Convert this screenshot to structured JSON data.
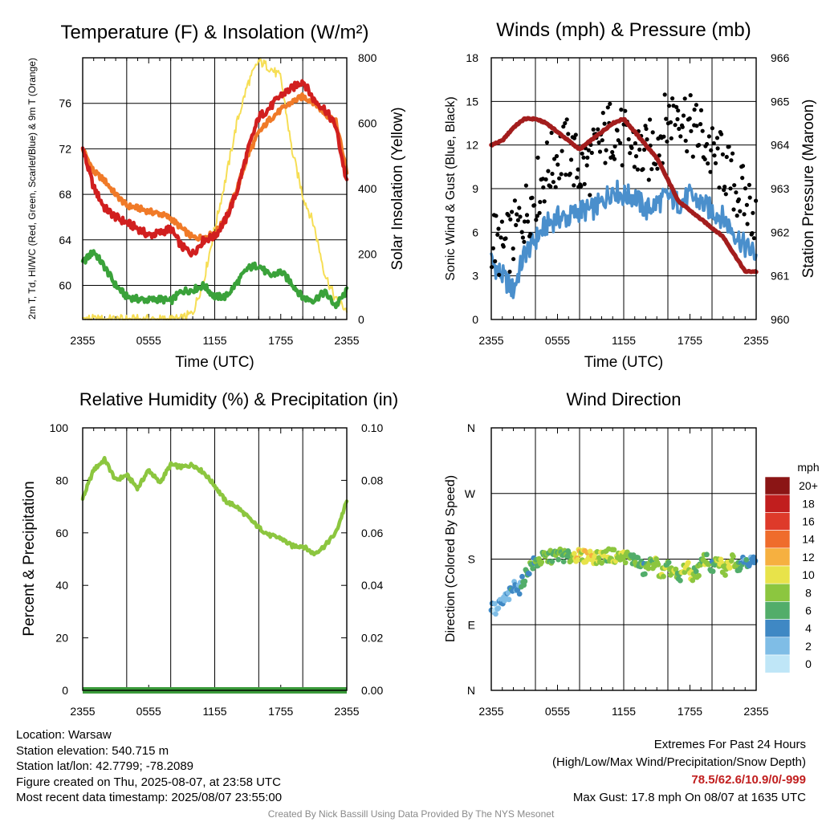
{
  "chart_data": [
    {
      "type": "line",
      "title": "Temperature (F) & Insolation (W/m²)",
      "xlabel": "Time (UTC)",
      "ylabel": "2m T, Td, HI/WC (Red, Green, Scarlet/Blue) & 9m T (Orange)",
      "y2label": "Solar Insolation (Yellow)",
      "x_ticks": [
        "2355",
        "0555",
        "1155",
        "1755",
        "2355"
      ],
      "ylim": [
        57,
        80
      ],
      "y_ticks": [
        60,
        64,
        68,
        72,
        76
      ],
      "y2lim": [
        0,
        800
      ],
      "y2_ticks": [
        0,
        200,
        400,
        600,
        800
      ],
      "series": [
        {
          "name": "2m T",
          "color": "#d11f1f",
          "x": [
            0,
            1,
            2,
            3,
            4,
            5,
            6,
            7,
            8,
            9,
            10,
            11,
            12,
            13,
            14,
            15,
            16,
            17,
            18,
            19,
            20,
            21,
            22,
            23,
            24
          ],
          "values": [
            72.0,
            68.6,
            66.8,
            66.0,
            65.5,
            65.0,
            64.4,
            64.6,
            65.0,
            63.4,
            62.8,
            64.0,
            64.3,
            65.8,
            68.2,
            71.8,
            74.8,
            75.6,
            76.7,
            77.3,
            78.0,
            76.3,
            75.5,
            74.0,
            69.0
          ]
        },
        {
          "name": "9m T",
          "color": "#f07a28",
          "x": [
            0,
            1,
            2,
            3,
            4,
            5,
            6,
            7,
            8,
            9,
            10,
            11,
            12,
            13,
            14,
            15,
            16,
            17,
            18,
            19,
            20,
            21,
            22,
            23,
            24
          ],
          "values": [
            72.0,
            70.0,
            69.2,
            68.0,
            67.0,
            66.8,
            66.5,
            66.3,
            65.9,
            65.0,
            64.2,
            64.2,
            64.6,
            65.8,
            68.4,
            71.4,
            73.4,
            74.6,
            75.4,
            76.1,
            76.6,
            76.1,
            75.1,
            74.4,
            70.0
          ]
        },
        {
          "name": "2m Td",
          "color": "#3aa23a",
          "x": [
            0,
            1,
            2,
            3,
            4,
            5,
            6,
            7,
            8,
            9,
            10,
            11,
            12,
            13,
            14,
            15,
            16,
            17,
            18,
            19,
            20,
            21,
            22,
            23,
            24
          ],
          "values": [
            62.0,
            63.0,
            61.6,
            60.0,
            59.0,
            58.8,
            58.7,
            58.8,
            58.6,
            59.5,
            59.6,
            60.0,
            59.0,
            59.0,
            60.2,
            61.5,
            61.8,
            60.8,
            61.2,
            60.2,
            58.9,
            58.7,
            59.4,
            58.2,
            59.5
          ]
        },
        {
          "name": "Solar Insolation",
          "color": "#f6de55",
          "axis": "right",
          "x": [
            0,
            1,
            2,
            3,
            4,
            5,
            6,
            7,
            8,
            9,
            10,
            11,
            12,
            13,
            14,
            15,
            16,
            17,
            18,
            19,
            20,
            21,
            22,
            23,
            24
          ],
          "values": [
            5,
            0,
            0,
            0,
            0,
            0,
            0,
            0,
            0,
            2,
            20,
            120,
            280,
            430,
            600,
            720,
            790,
            770,
            740,
            520,
            380,
            290,
            140,
            60,
            30
          ]
        }
      ]
    },
    {
      "type": "scatter",
      "title": "Winds (mph) & Pressure (mb)",
      "xlabel": "Time (UTC)",
      "ylabel": "Sonic Wind & Gust (Blue, Black)",
      "y2label": "Station Pressure (Maroon)",
      "x_ticks": [
        "2355",
        "0555",
        "1155",
        "1755",
        "2355"
      ],
      "ylim": [
        0,
        18
      ],
      "y_ticks": [
        0,
        3,
        6,
        9,
        12,
        15,
        18
      ],
      "y2lim": [
        960,
        966
      ],
      "y2_ticks": [
        960,
        961,
        962,
        963,
        964,
        965,
        966
      ],
      "series": [
        {
          "name": "Sonic Wind",
          "color": "#4a8fcc",
          "x": [
            0,
            1,
            2,
            3,
            4,
            5,
            6,
            7,
            8,
            9,
            10,
            11,
            12,
            13,
            14,
            15,
            16,
            17,
            18,
            19,
            20,
            21,
            22,
            23,
            24
          ],
          "values": [
            4.0,
            3.0,
            2.0,
            4.5,
            5.5,
            6.5,
            7.0,
            7.0,
            7.5,
            7.5,
            8.0,
            9.0,
            8.5,
            8.5,
            7.5,
            8.0,
            8.5,
            8.0,
            8.5,
            8.0,
            7.5,
            7.0,
            6.0,
            5.0,
            4.5
          ]
        },
        {
          "name": "Gust",
          "color": "#000000",
          "x": [
            0,
            1,
            2,
            3,
            4,
            5,
            6,
            7,
            8,
            9,
            10,
            11,
            12,
            13,
            14,
            15,
            16,
            17,
            18,
            19,
            20,
            21,
            22,
            23,
            24
          ],
          "values": [
            5.5,
            4.5,
            5.5,
            7.0,
            8.5,
            10.0,
            11.0,
            11.5,
            10.0,
            10.5,
            12.0,
            13.0,
            12.0,
            11.5,
            11.0,
            12.0,
            13.5,
            14.5,
            13.0,
            12.5,
            11.0,
            10.5,
            9.0,
            8.0,
            7.0
          ]
        },
        {
          "name": "Station Pressure",
          "color": "#a31d1d",
          "axis": "right",
          "x": [
            0,
            1,
            2,
            3,
            4,
            5,
            6,
            7,
            8,
            9,
            10,
            11,
            12,
            13,
            14,
            15,
            16,
            17,
            18,
            19,
            20,
            21,
            22,
            23,
            24
          ],
          "values": [
            964.0,
            964.1,
            964.4,
            964.6,
            964.6,
            964.5,
            964.3,
            964.1,
            963.9,
            964.1,
            964.3,
            964.5,
            964.6,
            964.3,
            964.0,
            963.7,
            963.2,
            962.7,
            962.5,
            962.3,
            962.1,
            961.9,
            961.5,
            961.1,
            961.1
          ]
        }
      ]
    },
    {
      "type": "line",
      "title": "Relative Humidity (%) & Precipitation (in)",
      "xlabel": "",
      "ylabel": "Percent & Precipitation",
      "x_ticks": [
        "2355",
        "0555",
        "1155",
        "1755",
        "2355"
      ],
      "ylim": [
        0,
        100
      ],
      "y_ticks": [
        0,
        20,
        40,
        60,
        80,
        100
      ],
      "y2lim": [
        0,
        0.1
      ],
      "y2_ticks": [
        "0.00",
        "0.02",
        "0.04",
        "0.06",
        "0.08",
        "0.10"
      ],
      "series": [
        {
          "name": "Relative Humidity",
          "color": "#8cc63f",
          "x": [
            0,
            1,
            2,
            3,
            4,
            5,
            6,
            7,
            8,
            9,
            10,
            11,
            12,
            13,
            14,
            15,
            16,
            17,
            18,
            19,
            20,
            21,
            22,
            23,
            24
          ],
          "values": [
            73,
            84,
            88,
            80,
            82,
            77,
            84,
            79,
            86,
            85,
            86,
            83,
            78,
            72,
            70,
            66,
            62,
            59,
            58,
            55,
            55,
            52,
            55,
            60,
            72
          ]
        },
        {
          "name": "Precipitation",
          "color": "#3a9a3a",
          "axis": "right",
          "x": [
            0,
            24
          ],
          "values": [
            0,
            0
          ]
        }
      ]
    },
    {
      "type": "scatter",
      "title": "Wind Direction",
      "xlabel": "",
      "ylabel": "Direction (Colored By Speed)",
      "x_ticks": [
        "2355",
        "0555",
        "1155",
        "1755",
        "2355"
      ],
      "y_ticks": [
        "N",
        "E",
        "S",
        "W",
        "N"
      ],
      "ylim": [
        0,
        360
      ],
      "colorbar": {
        "unit": "mph",
        "labels": [
          "0",
          "2",
          "4",
          "6",
          "8",
          "10",
          "12",
          "14",
          "16",
          "18",
          "20+"
        ],
        "colors": [
          "#bfe6f7",
          "#7fbde6",
          "#3f88c4",
          "#52ad6a",
          "#8cc63f",
          "#e8e34a",
          "#f6b040",
          "#ef6c2c",
          "#de3a2a",
          "#c11e1e",
          "#8b1515"
        ]
      },
      "series": [
        {
          "name": "Direction",
          "x": [
            0.2,
            0.5,
            0.8,
            1.2,
            1.7,
            2.2,
            2.6,
            3.0,
            3.6,
            4.2,
            4.8,
            5.5,
            6.2,
            7.0,
            7.6,
            8.2,
            9.0,
            9.6,
            10.2,
            10.9,
            11.5,
            12.1,
            12.6,
            13.2,
            13.8,
            14.2,
            14.8,
            15.4,
            16.0,
            16.6,
            17.0,
            17.6,
            18.2,
            18.8,
            19.4,
            20.0,
            20.6,
            21.2,
            21.8,
            22.4,
            23.0,
            23.6
          ],
          "values": [
            113,
            108,
            118,
            124,
            132,
            146,
            139,
            155,
            172,
            176,
            182,
            183,
            187,
            182,
            186,
            183,
            185,
            181,
            184,
            186,
            182,
            184,
            181,
            178,
            165,
            170,
            178,
            158,
            168,
            162,
            150,
            172,
            158,
            165,
            182,
            168,
            176,
            164,
            182,
            172,
            180,
            176
          ],
          "speeds": [
            2,
            1,
            2,
            2,
            4,
            3,
            4,
            5,
            6,
            6,
            7,
            7,
            8,
            7,
            10,
            10,
            11,
            9,
            8,
            9,
            8,
            9,
            7,
            6,
            6,
            7,
            8,
            9,
            7,
            10,
            6,
            10,
            9,
            7,
            8,
            6,
            9,
            8,
            10,
            5,
            4,
            4
          ]
        }
      ]
    }
  ],
  "footer": {
    "location": "Location: Warsaw",
    "elevation": "Station elevation: 540.715 m",
    "latlon": "Station lat/lon: 42.7799; -78.2089",
    "created": "Figure created on Thu, 2025-08-07, at 23:58 UTC",
    "recent": "Most recent data timestamp: 2025/08/07 23:55:00",
    "extremes_title": "Extremes For Past 24 Hours",
    "extremes_sub": "(High/Low/Max Wind/Precipitation/Snow Depth)",
    "extremes_values": "78.5/62.6/10.9/0/-999",
    "max_gust": "Max Gust: 17.8 mph On 08/07 at 1635 UTC"
  },
  "credit": "Created By Nick Bassill Using Data Provided By The NYS Mesonet"
}
